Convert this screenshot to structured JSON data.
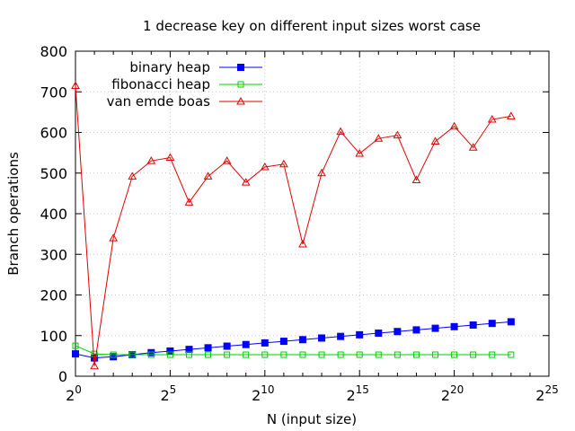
{
  "colors": {
    "binary heap": "#0000ff",
    "fibonacci heap": "#00cc00",
    "van emde boas": "#e00000",
    "grid": "#c8c8c8"
  },
  "chart_data": {
    "type": "line",
    "title": "1 decrease key on different input sizes worst case",
    "xlabel": "N (input size)",
    "ylabel": "Branch operations",
    "x_scale": "log2",
    "xlim": [
      0,
      25
    ],
    "ylim": [
      0,
      800
    ],
    "x_ticks": [
      {
        "base": "2",
        "exp": "0",
        "value": 0
      },
      {
        "base": "2",
        "exp": "5",
        "value": 5
      },
      {
        "base": "2",
        "exp": "10",
        "value": 10
      },
      {
        "base": "2",
        "exp": "15",
        "value": 15
      },
      {
        "base": "2",
        "exp": "20",
        "value": 20
      },
      {
        "base": "2",
        "exp": "25",
        "value": 25
      }
    ],
    "y_ticks": [
      {
        "label": "0",
        "value": 0
      },
      {
        "label": "100",
        "value": 100
      },
      {
        "label": "200",
        "value": 200
      },
      {
        "label": "300",
        "value": 300
      },
      {
        "label": "400",
        "value": 400
      },
      {
        "label": "500",
        "value": 500
      },
      {
        "label": "600",
        "value": 600
      },
      {
        "label": "700",
        "value": 700
      },
      {
        "label": "800",
        "value": 800
      }
    ],
    "grid": true,
    "legend_position": "top-left",
    "x": [
      0,
      1,
      2,
      3,
      4,
      5,
      6,
      7,
      8,
      9,
      10,
      11,
      12,
      13,
      14,
      15,
      16,
      17,
      18,
      19,
      20,
      21,
      22,
      23
    ],
    "series": [
      {
        "name": "binary heap",
        "marker": "filled-square",
        "values": [
          55,
          45,
          48,
          53,
          58,
          62,
          66,
          70,
          74,
          78,
          82,
          86,
          90,
          94,
          98,
          102,
          106,
          110,
          114,
          118,
          122,
          126,
          130,
          134
        ]
      },
      {
        "name": "fibonacci heap",
        "marker": "open-square",
        "values": [
          75,
          55,
          53,
          53,
          53,
          53,
          53,
          53,
          53,
          53,
          53,
          53,
          53,
          53,
          53,
          53,
          53,
          53,
          53,
          53,
          53,
          53,
          53,
          53
        ]
      },
      {
        "name": "van emde boas",
        "marker": "open-triangle",
        "values": [
          715,
          25,
          340,
          492,
          530,
          538,
          428,
          492,
          530,
          477,
          515,
          522,
          325,
          500,
          602,
          548,
          585,
          593,
          483,
          578,
          615,
          563,
          632,
          640
        ]
      }
    ]
  }
}
